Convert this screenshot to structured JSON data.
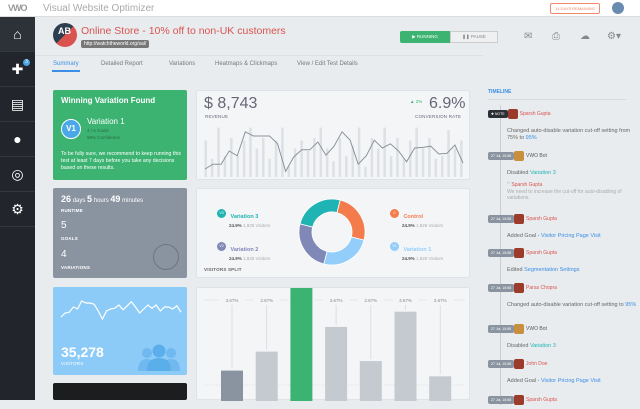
{
  "app": {
    "logo": "VWO",
    "title": "Visual Website Optimizer",
    "days_remaining": "14 DAYS REMAINING"
  },
  "sidebar": {
    "items": [
      {
        "icon": "home-icon"
      },
      {
        "icon": "plus-icon",
        "badge": "3"
      },
      {
        "icon": "clipboard-icon"
      },
      {
        "icon": "bulb-icon"
      },
      {
        "icon": "lifebuoy-icon"
      },
      {
        "icon": "gear-icon"
      }
    ]
  },
  "test": {
    "badge": "AB",
    "title": "Online Store - 10% off to non-UK customers",
    "url": "http://watchtheworld.org/sal/",
    "running": "RUNNING",
    "pause": "PAUSE"
  },
  "tabs": [
    "Summary",
    "Detailed Report",
    "Variations",
    "Heatmaps & Clickmaps",
    "View / Edit Test Details"
  ],
  "winner": {
    "heading": "Winning Variation Found",
    "chip": "V1",
    "name": "Variation 1",
    "goals": "4 / 5 Goals",
    "confidence": "98% Confidence",
    "note": "To be fully sure, we recommend to keep running this test at least 7 days before you take any decisions based on these results."
  },
  "revenue": {
    "value": "$ 8,743",
    "label": "REVENUE",
    "change": "2%",
    "rate": "6.9%",
    "rate_label": "CONVERSION RATE",
    "line": [
      10,
      18,
      18,
      40,
      32,
      72,
      65,
      65,
      65,
      52,
      6,
      30,
      42,
      42,
      55,
      33,
      48,
      72,
      58,
      18,
      32,
      58,
      45,
      52,
      40,
      22,
      45,
      46,
      48,
      35,
      36,
      50,
      20
    ],
    "bars": [
      70,
      35,
      95,
      40,
      75,
      40,
      70,
      95,
      55,
      75,
      35,
      70,
      95,
      20,
      55,
      70,
      50,
      75,
      95,
      55,
      30,
      75,
      40,
      60,
      95,
      20,
      75,
      55,
      95,
      40,
      75,
      35,
      70,
      95,
      55,
      75,
      35,
      40,
      90,
      55,
      70
    ]
  },
  "runtime": {
    "days": "26",
    "days_u": "days",
    "hours": "5",
    "hours_u": "hours",
    "mins": "49",
    "mins_u": "minutes",
    "runtime_label": "RUNTIME",
    "goals": "5",
    "goals_label": "GOALS",
    "variations": "4",
    "variations_label": "VARIATIONS"
  },
  "split": {
    "label": "VISITORS SPLIT",
    "items": [
      {
        "chip": "V3",
        "name": "Variation 3",
        "pct": "24.9%",
        "visitors": "1,925 Visitors",
        "color": "#1fb3b3"
      },
      {
        "chip": "C",
        "name": "Control",
        "pct": "24.9%",
        "visitors": "1,925 Visitors",
        "color": "#f47c4c"
      },
      {
        "chip": "V2",
        "name": "Variation 2",
        "pct": "24.9%",
        "visitors": "1,925 Visitors",
        "color": "#8088b8"
      },
      {
        "chip": "V1",
        "name": "Variation 1",
        "pct": "24.9%",
        "visitors": "1,925 Visitors",
        "color": "#93cdfa"
      }
    ]
  },
  "visitors": {
    "value": "35,278",
    "label": "VISITORS",
    "line": [
      30,
      40,
      42,
      55,
      50,
      70,
      65,
      65,
      62,
      45,
      25,
      45,
      50,
      52,
      60,
      48,
      58,
      68,
      55,
      40,
      50,
      60,
      52,
      60,
      45,
      55,
      55,
      50,
      58,
      42
    ]
  },
  "bar_chart": {
    "labels": [
      "3.67%",
      "3.67%",
      "3.67%",
      "3.67%",
      "3.67%",
      "3.67%",
      "3.67%"
    ],
    "values": [
      16,
      26,
      62,
      39,
      21,
      47,
      13
    ],
    "highlight": 2,
    "colors": {
      "base": "#c5cad1",
      "first": "#8a94a1",
      "highlight": "#3cb371"
    }
  },
  "timeline": {
    "heading": "TIMELINE",
    "events": [
      {
        "stamp": "NOTE",
        "who": "Sparsh Gupta",
        "pre": "Changed auto-disable variation cut-off setting  from 75% to ",
        "link": "95%"
      },
      {
        "stamp": "27 Jul, 15:58",
        "who": "VWO Bot",
        "pre": "Disabled ",
        "link": "Variation 3",
        "quote_who": "Sparsh Gupta",
        "quote": "We need to increase the cut-off for auto-disabling of variations."
      },
      {
        "stamp": "27 Jul, 15:58",
        "who": "Sparsh Gupta",
        "pre": "Added Goal - ",
        "link": "Visitor Pricing Page Visit"
      },
      {
        "stamp": "27 Jul, 15:58",
        "who": "Sparsh Gupta",
        "pre": "Edited ",
        "link": "Segmentation Settings"
      },
      {
        "stamp": "27 Jul, 15:58",
        "who": "Paras Chopra",
        "pre": "Changed auto-disable variation cut-off setting to ",
        "link": "95%"
      },
      {
        "stamp": "27 Jul, 15:58",
        "who": "VWO Bot",
        "pre": "Disabled ",
        "link": "Variation 3"
      },
      {
        "stamp": "27 Jul, 15:58",
        "who": "John Doe",
        "pre": "Added Goal - ",
        "link": "Visitor Pricing Page Visit"
      },
      {
        "stamp": "27 Jul, 15:58",
        "who": "Sparsh Gupta"
      }
    ]
  }
}
